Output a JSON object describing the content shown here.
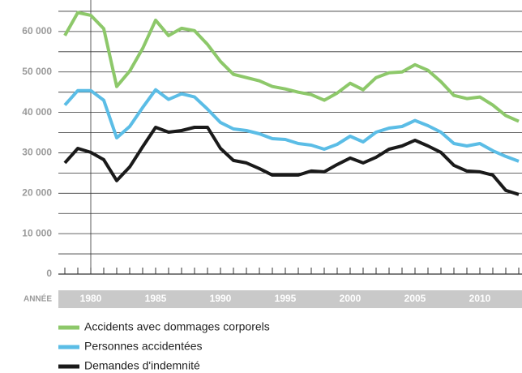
{
  "chart_data": {
    "type": "line",
    "x_label": "ANNÉE",
    "x": [
      1978,
      1979,
      1980,
      1981,
      1982,
      1983,
      1984,
      1985,
      1986,
      1987,
      1988,
      1989,
      1990,
      1991,
      1992,
      1993,
      1994,
      1995,
      1996,
      1997,
      1998,
      1999,
      2000,
      2001,
      2002,
      2003,
      2004,
      2005,
      2006,
      2007,
      2008,
      2009,
      2010,
      2011,
      2012,
      2013
    ],
    "series": [
      {
        "name": "Accidents avec dommages corporels",
        "color": "#8dc86a",
        "values": [
          59000,
          64700,
          64000,
          60700,
          46400,
          50200,
          55800,
          62800,
          59000,
          60800,
          60200,
          56800,
          52600,
          49400,
          48600,
          47800,
          46400,
          45800,
          45000,
          44400,
          43000,
          44800,
          47200,
          45600,
          48600,
          49800,
          50000,
          51800,
          50400,
          47600,
          44200,
          43400,
          43800,
          41800,
          39200,
          37800
        ]
      },
      {
        "name": "Personnes accidentées",
        "color": "#5bbde6",
        "values": [
          41800,
          45400,
          45400,
          43000,
          33700,
          36500,
          41200,
          45600,
          43200,
          44600,
          43800,
          40800,
          37500,
          35900,
          35500,
          34700,
          33500,
          33300,
          32300,
          31900,
          30900,
          32100,
          34100,
          32700,
          35100,
          36100,
          36500,
          38000,
          36700,
          35100,
          32300,
          31700,
          32300,
          30500,
          29100,
          27900
        ]
      },
      {
        "name": "Demandes d'indemnité",
        "color": "#1a1a1a",
        "values": [
          27500,
          31100,
          30100,
          28300,
          23100,
          26500,
          31500,
          36300,
          35100,
          35500,
          36300,
          36300,
          31100,
          28100,
          27500,
          26100,
          24500,
          24500,
          24500,
          25500,
          25300,
          27100,
          28700,
          27500,
          28900,
          30900,
          31700,
          33100,
          31700,
          30100,
          26900,
          25500,
          25300,
          24500,
          20700,
          19700
        ]
      }
    ],
    "xlim": [
      1977.5,
      2013.25
    ],
    "xticks": [
      1980,
      1985,
      1990,
      1995,
      2000,
      2005,
      2010
    ],
    "ylim": [
      0,
      67800
    ],
    "yticks": [
      0,
      {
        "value": 10000,
        "label": "10 000"
      },
      {
        "value": 20000,
        "label": "20 000"
      },
      {
        "value": 30000,
        "label": "30 000"
      },
      {
        "value": 40000,
        "label": "40 000"
      },
      {
        "value": 50000,
        "label": "50 000"
      },
      {
        "value": 60000,
        "label": "60 000"
      }
    ],
    "minor_ygrid": [
      5000,
      15000,
      25000,
      35000,
      45000,
      55000,
      65000
    ],
    "grid": true,
    "legend": "bottom"
  }
}
